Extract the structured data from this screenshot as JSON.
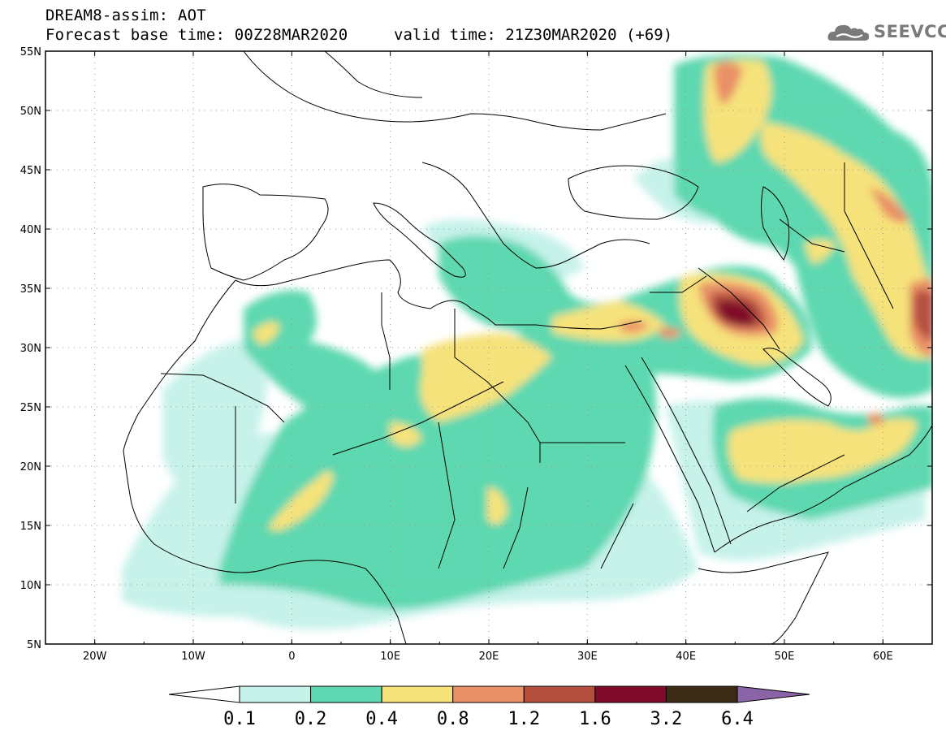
{
  "header": {
    "line1": "DREAM8-assim: AOT",
    "line2_left": "Forecast base time: 00Z28MAR2020",
    "line2_right": "valid time: 21Z30MAR2020 (+69)",
    "logo_text": "SEEVCCC",
    "logo_icon": "cloud-icon"
  },
  "map": {
    "lon_range": [
      -25,
      65
    ],
    "lat_range": [
      5,
      55
    ],
    "lat_labels": [
      "55N",
      "50N",
      "45N",
      "40N",
      "35N",
      "30N",
      "25N",
      "20N",
      "15N",
      "10N",
      "5N"
    ],
    "lon_labels": [
      "20W",
      "10W",
      "0",
      "10E",
      "20E",
      "30E",
      "40E",
      "50E",
      "60E"
    ],
    "grid": true,
    "grid_style": "dotted"
  },
  "colorbar": {
    "levels": [
      "0.1",
      "0.2",
      "0.4",
      "0.8",
      "1.2",
      "1.6",
      "3.2",
      "6.4"
    ],
    "colors": [
      "#ffffff",
      "#c6f2ea",
      "#5dd8b0",
      "#f6e27a",
      "#e99066",
      "#b5503f",
      "#7f0b2b",
      "#3b2a16",
      "#8a64a6"
    ]
  }
}
